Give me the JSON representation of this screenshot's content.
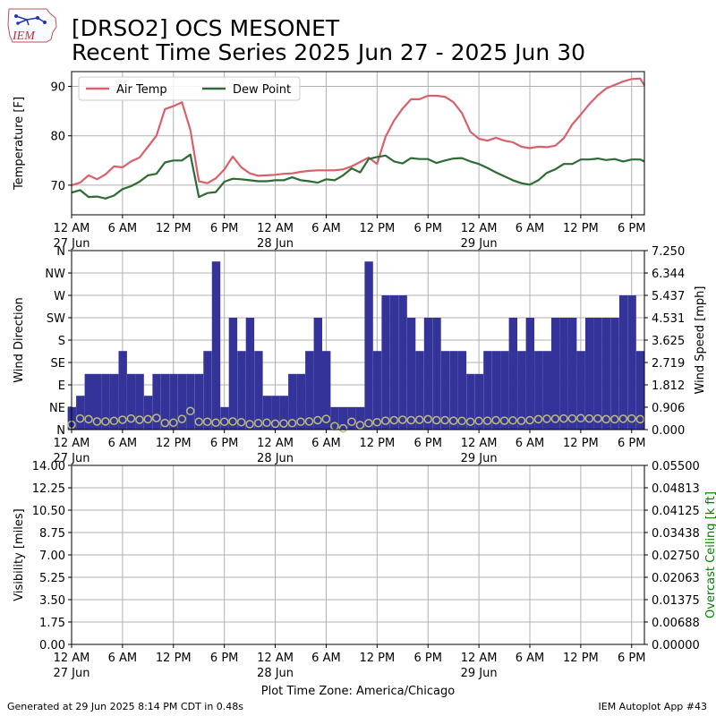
{
  "header": {
    "title_line1": "[DRSO2] OCS MESONET",
    "title_line2": "Recent Time Series 2025 Jun 27 - 2025 Jun 30",
    "logo_text": "IEM"
  },
  "footer": {
    "generated": "Generated at 29 Jun 2025 8:14 PM CDT in 0.48s",
    "app": "IEM Autoplot App #43",
    "timezone_label": "Plot Time Zone: America/Chicago"
  },
  "colors": {
    "air_temp": "#d9606a",
    "dew_point": "#2e6b34",
    "wind_bars": "#333399",
    "wind_speed": "#bdbd7a",
    "grid": "#b0b0b0",
    "ceiling_axis": "#008000"
  },
  "chart_data": [
    {
      "type": "line",
      "name": "temperature",
      "ylabel": "Temperature [F]",
      "ylim": [
        64,
        93
      ],
      "xlim": [
        0,
        67.5
      ],
      "yticks": [
        70,
        80,
        90
      ],
      "xticks": [
        0,
        6,
        12,
        18,
        24,
        30,
        36,
        42,
        48,
        54,
        60,
        66
      ],
      "xtick_labels": [
        "12 AM",
        "6 AM",
        "12 PM",
        "6 PM",
        "12 AM",
        "6 AM",
        "12 PM",
        "6 PM",
        "12 AM",
        "6 AM",
        "12 PM",
        "6 PM"
      ],
      "date_labels": [
        {
          "hour": 0,
          "text": "27 Jun"
        },
        {
          "hour": 24,
          "text": "28 Jun"
        },
        {
          "hour": 48,
          "text": "29 Jun"
        }
      ],
      "grid": true,
      "legend_position": "top-left",
      "series": [
        {
          "name": "Air Temp",
          "color": "#d9606a",
          "x": [
            0,
            1,
            2,
            3,
            4,
            5,
            6,
            7,
            8,
            9,
            10,
            11,
            12,
            13,
            14,
            15,
            16,
            17,
            18,
            19,
            20,
            21,
            22,
            23,
            24,
            25,
            26,
            27,
            28,
            29,
            30,
            31,
            32,
            33,
            34,
            35,
            36,
            37,
            38,
            39,
            40,
            41,
            42,
            43,
            44,
            45,
            46,
            47,
            48,
            49,
            50,
            51,
            52,
            53,
            54,
            55,
            56,
            57,
            58,
            59,
            60,
            61,
            62,
            63,
            64,
            65,
            66,
            67,
            67.5
          ],
          "values": [
            70,
            70.5,
            72,
            71.2,
            72.2,
            73.8,
            73.6,
            74.8,
            75.6,
            77.8,
            80,
            85.4,
            86,
            86.8,
            81.2,
            70.8,
            70.4,
            71.4,
            73.2,
            75.8,
            73.6,
            72.4,
            71.9,
            72,
            72.1,
            72.3,
            72.4,
            72.7,
            72.9,
            73,
            73,
            73,
            73.2,
            73.8,
            74.7,
            75.6,
            74.3,
            79.8,
            83.1,
            85.5,
            87.4,
            87.4,
            88.1,
            88.1,
            87.9,
            86.8,
            84.6,
            80.8,
            79.4,
            79,
            79.6,
            79,
            78.7,
            77.8,
            77.5,
            77.8,
            77.7,
            78,
            79.5,
            82.3,
            84.3,
            86.4,
            88.2,
            89.6,
            90.3,
            91,
            91.5,
            91.6,
            90.2
          ]
        },
        {
          "name": "Dew Point",
          "color": "#2e6b34",
          "x": [
            0,
            1,
            2,
            3,
            4,
            5,
            6,
            7,
            8,
            9,
            10,
            11,
            12,
            13,
            14,
            15,
            16,
            17,
            18,
            19,
            20,
            21,
            22,
            23,
            24,
            25,
            26,
            27,
            28,
            29,
            30,
            31,
            32,
            33,
            34,
            35,
            36,
            37,
            38,
            39,
            40,
            41,
            42,
            43,
            44,
            45,
            46,
            47,
            48,
            49,
            50,
            51,
            52,
            53,
            54,
            55,
            56,
            57,
            58,
            59,
            60,
            61,
            62,
            63,
            64,
            65,
            66,
            67,
            67.5
          ],
          "values": [
            68.5,
            69,
            67.6,
            67.7,
            67.3,
            67.9,
            69.2,
            69.8,
            70.7,
            72,
            72.3,
            74.6,
            75,
            75,
            76.2,
            67.6,
            68.4,
            68.6,
            70.7,
            71.3,
            71.2,
            71,
            70.8,
            70.8,
            71,
            71,
            71.6,
            71,
            70.8,
            70.5,
            71.2,
            71,
            72,
            73.4,
            72.6,
            75.3,
            75.7,
            76,
            74.8,
            74.4,
            75.5,
            75.3,
            75.3,
            74.5,
            75,
            75.4,
            75.5,
            74.8,
            74.3,
            73.5,
            72.6,
            71.8,
            71,
            70.4,
            70.1,
            71,
            72.5,
            73.2,
            74.3,
            74.3,
            75.2,
            75.2,
            75.4,
            75.1,
            75.3,
            74.8,
            75.2,
            75.2,
            74.8
          ]
        }
      ]
    },
    {
      "type": "bar",
      "name": "wind",
      "ylabel": "Wind Direction",
      "y2label": "Wind Speed [mph]",
      "ylim": [
        0,
        360
      ],
      "y2lim": [
        0,
        7.25
      ],
      "xlim": [
        0,
        67.5
      ],
      "yticks": [
        0,
        45,
        90,
        135,
        180,
        225,
        270,
        315,
        360
      ],
      "ytick_labels": [
        "N",
        "NE",
        "E",
        "SE",
        "S",
        "SW",
        "W",
        "NW",
        "N"
      ],
      "y2ticks": [
        0,
        0.906,
        1.812,
        2.719,
        3.625,
        4.531,
        5.437,
        6.344,
        7.25
      ],
      "y2tick_labels": [
        "0.000",
        "0.906",
        "1.812",
        "2.719",
        "3.625",
        "4.531",
        "5.437",
        "6.344",
        "7.250"
      ],
      "xticks": [
        0,
        6,
        12,
        18,
        24,
        30,
        36,
        42,
        48,
        54,
        60,
        66
      ],
      "xtick_labels": [
        "12 AM",
        "6 AM",
        "12 PM",
        "6 PM",
        "12 AM",
        "6 AM",
        "12 PM",
        "6 PM",
        "12 AM",
        "6 AM",
        "12 PM",
        "6 PM"
      ],
      "date_labels": [
        {
          "hour": 0,
          "text": "27 Jun"
        },
        {
          "hour": 24,
          "text": "28 Jun"
        },
        {
          "hour": 48,
          "text": "29 Jun"
        }
      ],
      "grid": true,
      "bar_color": "#333399",
      "bar_width_hours": 0.93,
      "direction": {
        "x": [
          0,
          1,
          2,
          3,
          4,
          5,
          6,
          7,
          8,
          9,
          10,
          11,
          12,
          13,
          14,
          15,
          16,
          17,
          18,
          19,
          20,
          21,
          22,
          23,
          24,
          25,
          26,
          27,
          28,
          29,
          30,
          31,
          32,
          33,
          34,
          35,
          36,
          37,
          38,
          39,
          40,
          41,
          42,
          43,
          44,
          45,
          46,
          47,
          48,
          49,
          50,
          51,
          52,
          53,
          54,
          55,
          56,
          57,
          58,
          59,
          60,
          61,
          62,
          63,
          64,
          65,
          66,
          67
        ],
        "values": [
          45,
          68,
          112,
          112,
          112,
          112,
          158,
          112,
          112,
          68,
          112,
          112,
          112,
          112,
          112,
          112,
          158,
          338,
          45,
          225,
          158,
          225,
          158,
          68,
          68,
          68,
          112,
          112,
          158,
          225,
          158,
          45,
          45,
          45,
          45,
          338,
          158,
          270,
          270,
          270,
          225,
          158,
          225,
          225,
          158,
          158,
          158,
          112,
          112,
          158,
          158,
          158,
          225,
          158,
          225,
          158,
          158,
          225,
          225,
          225,
          158,
          225,
          225,
          225,
          225,
          270,
          270,
          158
        ]
      },
      "speed": {
        "x": [
          0,
          1,
          2,
          3,
          4,
          5,
          6,
          7,
          8,
          9,
          10,
          11,
          12,
          13,
          14,
          15,
          16,
          17,
          18,
          19,
          20,
          21,
          22,
          23,
          24,
          25,
          26,
          27,
          28,
          29,
          30,
          31,
          32,
          33,
          34,
          35,
          36,
          37,
          38,
          39,
          40,
          41,
          42,
          43,
          44,
          45,
          46,
          47,
          48,
          49,
          50,
          51,
          52,
          53,
          54,
          55,
          56,
          57,
          58,
          59,
          60,
          61,
          62,
          63,
          64,
          65,
          66,
          67
        ],
        "values": [
          0.2,
          0.45,
          0.42,
          0.33,
          0.33,
          0.35,
          0.4,
          0.45,
          0.4,
          0.42,
          0.47,
          0.27,
          0.28,
          0.43,
          0.75,
          0.32,
          0.32,
          0.28,
          0.32,
          0.33,
          0.3,
          0.22,
          0.26,
          0.28,
          0.24,
          0.25,
          0.26,
          0.32,
          0.33,
          0.38,
          0.43,
          0.14,
          0.05,
          0.32,
          0.18,
          0.26,
          0.3,
          0.36,
          0.38,
          0.4,
          0.38,
          0.4,
          0.42,
          0.38,
          0.38,
          0.36,
          0.35,
          0.32,
          0.35,
          0.36,
          0.38,
          0.36,
          0.37,
          0.36,
          0.38,
          0.42,
          0.44,
          0.44,
          0.45,
          0.45,
          0.46,
          0.45,
          0.45,
          0.42,
          0.42,
          0.44,
          0.45,
          0.42
        ]
      }
    },
    {
      "type": "line",
      "name": "visibility",
      "ylabel": "Visibility [miles]",
      "y2label": "Overcast Ceiling [k ft]",
      "ylim": [
        0,
        14
      ],
      "y2lim": [
        0,
        0.055
      ],
      "xlim": [
        0,
        67.5
      ],
      "yticks": [
        0,
        1.75,
        3.5,
        5.25,
        7,
        8.75,
        10.5,
        12.25,
        14
      ],
      "ytick_labels": [
        "0.00",
        "1.75",
        "3.50",
        "5.25",
        "7.00",
        "8.75",
        "10.50",
        "12.25",
        "14.00"
      ],
      "y2ticks": [
        0,
        0.00688,
        0.01375,
        0.02063,
        0.0275,
        0.03438,
        0.04125,
        0.04813,
        0.055
      ],
      "y2tick_labels": [
        "0.00000",
        "0.00688",
        "0.01375",
        "0.02063",
        "0.02750",
        "0.03438",
        "0.04125",
        "0.04813",
        "0.05500"
      ],
      "xticks": [
        0,
        6,
        12,
        18,
        24,
        30,
        36,
        42,
        48,
        54,
        60,
        66
      ],
      "xtick_labels": [
        "12 AM",
        "6 AM",
        "12 PM",
        "6 PM",
        "12 AM",
        "6 AM",
        "12 PM",
        "6 PM",
        "12 AM",
        "6 AM",
        "12 PM",
        "6 PM"
      ],
      "date_labels": [
        {
          "hour": 0,
          "text": "27 Jun"
        },
        {
          "hour": 24,
          "text": "28 Jun"
        },
        {
          "hour": 48,
          "text": "29 Jun"
        }
      ],
      "grid": true,
      "series": []
    }
  ]
}
